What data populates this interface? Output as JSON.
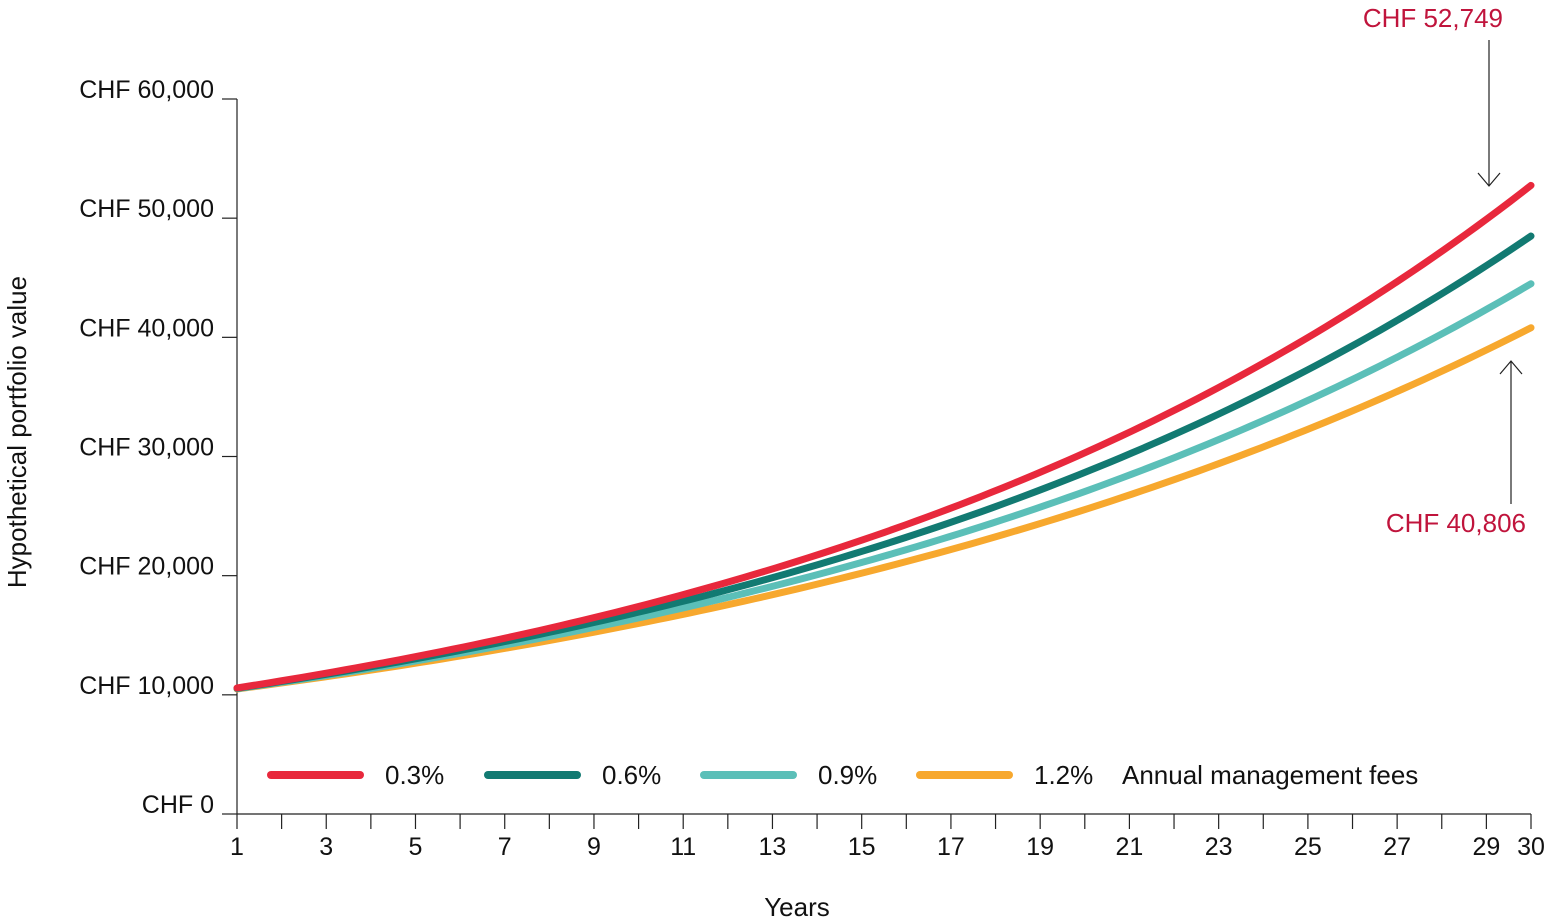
{
  "colors": {
    "annotation": "#c0143c",
    "axis": "#222222"
  },
  "chart_data": {
    "type": "line",
    "title": "",
    "xlabel": "Years",
    "ylabel": "Hypothetical portfolio value",
    "xlim": [
      1,
      30
    ],
    "ylim": [
      0,
      60000
    ],
    "x_tick_labels": [
      "1",
      "3",
      "5",
      "7",
      "9",
      "11",
      "13",
      "15",
      "17",
      "19",
      "21",
      "23",
      "25",
      "27",
      "29",
      "30"
    ],
    "y_tick_labels": [
      "CHF 0",
      "CHF 10,000",
      "CHF 20,000",
      "CHF 30,000",
      "CHF 40,000",
      "CHF 50,000",
      "CHF 60,000"
    ],
    "y_tick_values": [
      0,
      10000,
      20000,
      30000,
      40000,
      50000,
      60000
    ],
    "legend": {
      "placement": "bottom",
      "suffix": "Annual management fees"
    },
    "series": [
      {
        "name": "0.3%",
        "color": "#e8283c",
        "start_value": 10578,
        "end_value": 52749
      },
      {
        "name": "0.6%",
        "color": "#127a72",
        "start_value": 10550,
        "end_value": 48500
      },
      {
        "name": "0.9%",
        "color": "#5bbfb8",
        "start_value": 10520,
        "end_value": 44500
      },
      {
        "name": "1.2%",
        "color": "#f7a82e",
        "start_value": 10490,
        "end_value": 40806
      }
    ],
    "annotations": [
      {
        "text": "CHF 52,749",
        "series": "0.3%",
        "x": 30,
        "y": 52749,
        "placement": "above"
      },
      {
        "text": "CHF 40,806",
        "series": "1.2%",
        "x": 30,
        "y": 40806,
        "placement": "below"
      }
    ]
  }
}
